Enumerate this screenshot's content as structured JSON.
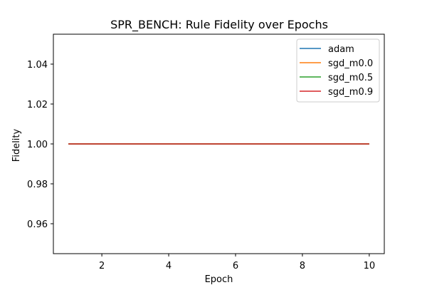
{
  "chart_data": {
    "type": "line",
    "title": "SPR_BENCH: Rule Fidelity over Epochs",
    "xlabel": "Epoch",
    "ylabel": "Fidelity",
    "x": [
      1,
      2,
      3,
      4,
      5,
      6,
      7,
      8,
      9,
      10
    ],
    "xlim": [
      0.55,
      10.45
    ],
    "ylim": [
      0.945,
      1.055
    ],
    "xticks": [
      2,
      4,
      6,
      8,
      10
    ],
    "yticks": [
      0.96,
      0.98,
      1.0,
      1.02,
      1.04
    ],
    "xtick_labels": [
      "2",
      "4",
      "6",
      "8",
      "10"
    ],
    "ytick_labels": [
      "0.96",
      "0.98",
      "1.00",
      "1.02",
      "1.04"
    ],
    "grid": false,
    "legend_position": "top-right",
    "series": [
      {
        "name": "adam",
        "color": "#1f77b4",
        "values": [
          1.0,
          1.0,
          1.0,
          1.0,
          1.0,
          1.0,
          1.0,
          1.0,
          1.0,
          1.0
        ]
      },
      {
        "name": "sgd_m0.0",
        "color": "#ff7f0e",
        "values": [
          1.0,
          1.0,
          1.0,
          1.0,
          1.0,
          1.0,
          1.0,
          1.0,
          1.0,
          1.0
        ]
      },
      {
        "name": "sgd_m0.5",
        "color": "#2ca02c",
        "values": [
          1.0,
          1.0,
          1.0,
          1.0,
          1.0,
          1.0,
          1.0,
          1.0,
          1.0,
          1.0
        ]
      },
      {
        "name": "sgd_m0.9",
        "color": "#d62728",
        "values": [
          1.0,
          1.0,
          1.0,
          1.0,
          1.0,
          1.0,
          1.0,
          1.0,
          1.0,
          1.0
        ]
      }
    ]
  }
}
